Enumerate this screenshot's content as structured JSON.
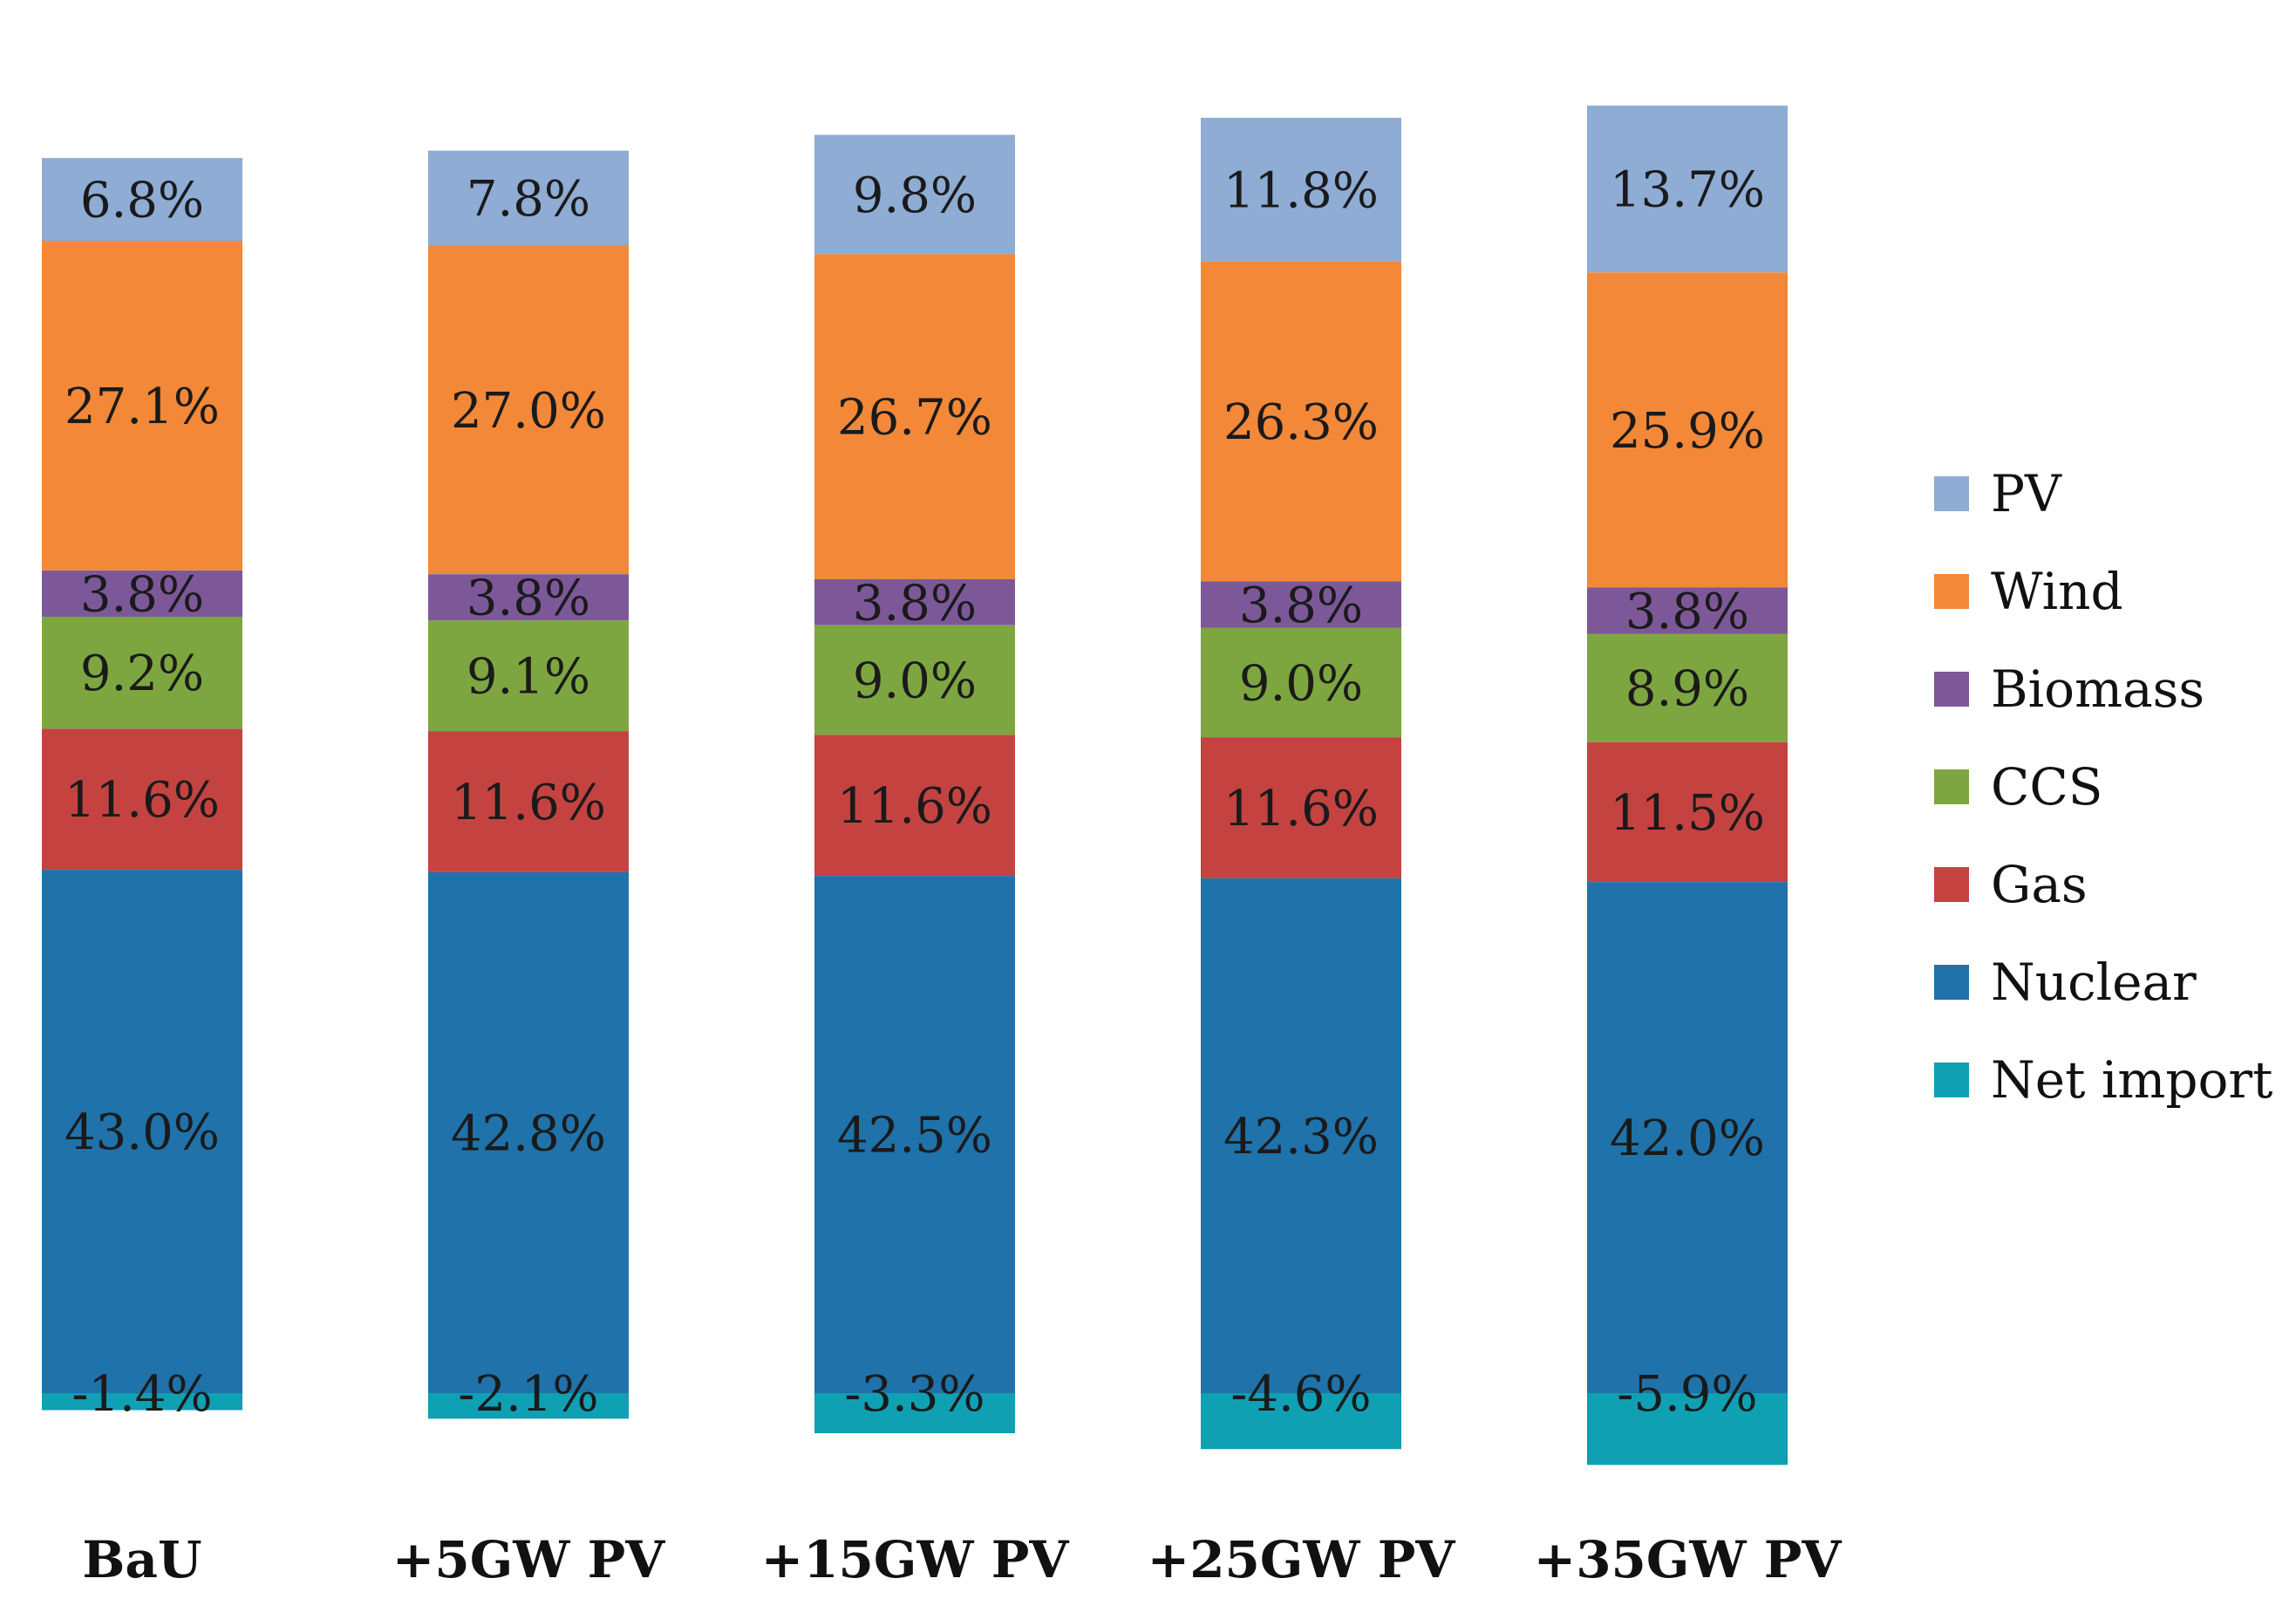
{
  "chart_data": {
    "type": "bar",
    "stacked": true,
    "title": "",
    "xlabel": "",
    "ylabel": "",
    "categories": [
      "BaU",
      "+5GW PV",
      "+15GW PV",
      "+25GW PV",
      "+35GW PV"
    ],
    "series": [
      {
        "name": "Net import",
        "color": "#0fa0b4",
        "values": [
          -1.4,
          -2.1,
          -3.3,
          -4.6,
          -5.9
        ],
        "labels": [
          "-1.4%",
          "-2.1%",
          "-3.3%",
          "-4.6%",
          "-5.9%"
        ]
      },
      {
        "name": "Nuclear",
        "color": "#1f72aa",
        "values": [
          43.0,
          42.8,
          42.5,
          42.3,
          42.0
        ],
        "labels": [
          "43.0%",
          "42.8%",
          "42.5%",
          "42.3%",
          "42.0%"
        ]
      },
      {
        "name": "Gas",
        "color": "#c44341",
        "values": [
          11.6,
          11.6,
          11.6,
          11.6,
          11.5
        ],
        "labels": [
          "11.6%",
          "11.6%",
          "11.6%",
          "11.6%",
          "11.5%"
        ]
      },
      {
        "name": "CCS",
        "color": "#7ea640",
        "values": [
          9.2,
          9.1,
          9.0,
          9.0,
          8.9
        ],
        "labels": [
          "9.2%",
          "9.1%",
          "9.0%",
          "9.0%",
          "8.9%"
        ]
      },
      {
        "name": "Biomass",
        "color": "#7d5899",
        "values": [
          3.8,
          3.8,
          3.8,
          3.8,
          3.8
        ],
        "labels": [
          "3.8%",
          "3.8%",
          "3.8%",
          "3.8%",
          "3.8%"
        ]
      },
      {
        "name": "Wind",
        "color": "#f28838",
        "values": [
          27.1,
          27.0,
          26.7,
          26.3,
          25.9
        ],
        "labels": [
          "27.1%",
          "27.0%",
          "26.7%",
          "26.3%",
          "25.9%"
        ]
      },
      {
        "name": "PV",
        "color": "#8eacd4",
        "values": [
          6.8,
          7.8,
          9.8,
          11.8,
          13.7
        ],
        "labels": [
          "6.8%",
          "7.8%",
          "9.8%",
          "11.8%",
          "13.7%"
        ]
      }
    ],
    "legend": {
      "position": "right",
      "order": [
        "PV",
        "Wind",
        "Biomass",
        "CCS",
        "Gas",
        "Nuclear",
        "Net import"
      ]
    },
    "grid": false,
    "axes_visible": false
  }
}
